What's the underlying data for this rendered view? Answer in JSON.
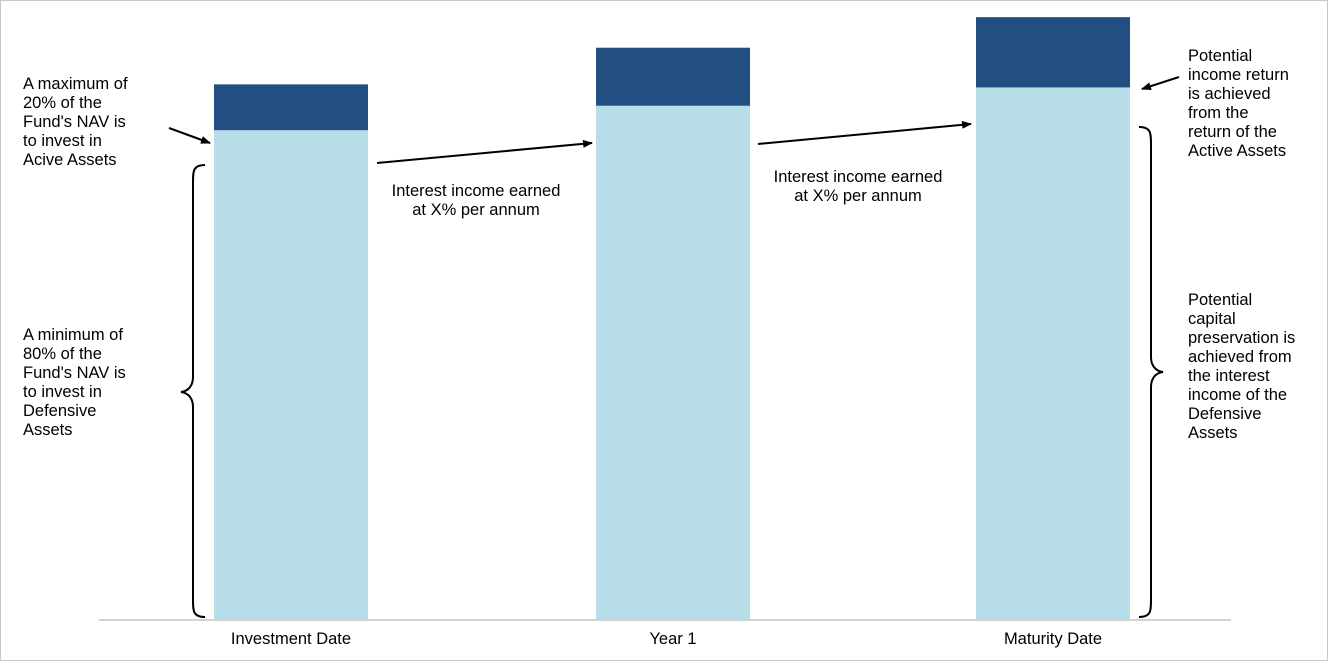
{
  "colors": {
    "active": "#234e82",
    "defensive": "#b7dde8",
    "axis": "#a6a6a6",
    "text": "#000000"
  },
  "chart_data": {
    "type": "bar",
    "stacked": true,
    "categories": [
      "Investment Date",
      "Year 1",
      "Maturity Date"
    ],
    "series": [
      {
        "key": "defensive",
        "values": [
          80,
          84,
          87
        ]
      },
      {
        "key": "active",
        "values": [
          7.5,
          9.5,
          11.5
        ]
      }
    ],
    "ylim": [
      0,
      100
    ]
  },
  "notes": {
    "max_active": "A maximum of\n20% of the\nFund's NAV is\nto invest in\nAcive Assets",
    "min_defensive": "A minimum of\n80% of the\nFund's NAV is\nto invest in\nDefensive\nAssets",
    "interest_1": "Interest income earned\nat X% per annum",
    "interest_2": "Interest income earned\nat X% per annum",
    "income_return": "Potential\nincome return\nis achieved\nfrom the\nreturn of the\nActive Assets",
    "capital_preservation": "Potential\ncapital\npreservation is\nachieved from\nthe interest\nincome of the\nDefensive\nAssets"
  }
}
